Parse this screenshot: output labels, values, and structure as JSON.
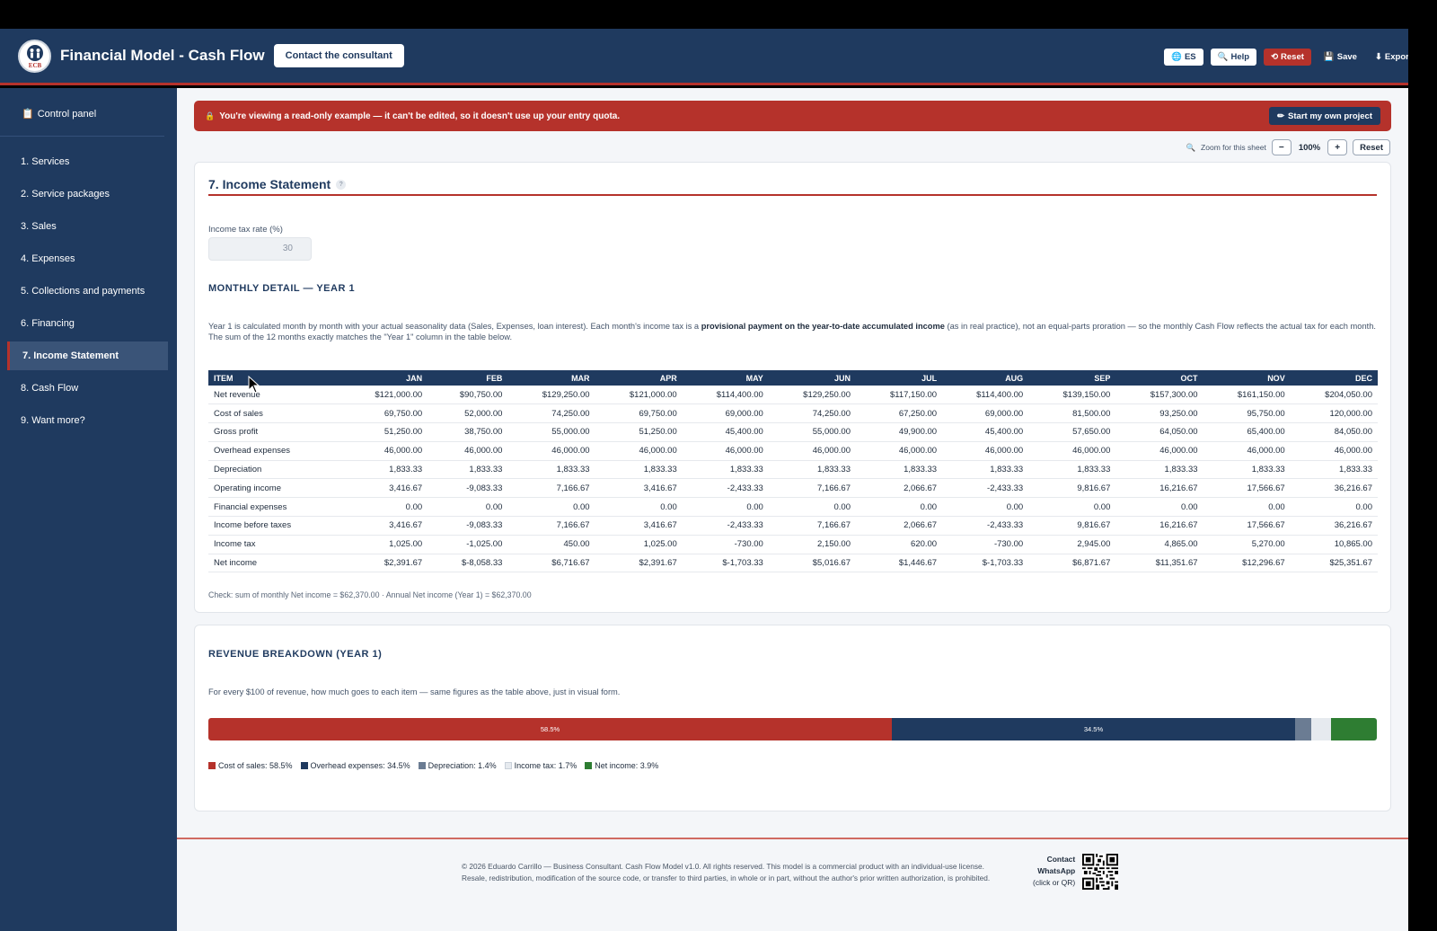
{
  "header": {
    "logo_text": "ECB",
    "title": "Financial Model - Cash Flow",
    "contact_button": "Contact the consultant",
    "buttons": {
      "lang": "ES",
      "help": "Help",
      "reset": "Reset",
      "save": "Save",
      "export": "Export"
    }
  },
  "sidebar": {
    "control_panel": "Control panel",
    "items": [
      {
        "label": "1. Services"
      },
      {
        "label": "2. Service packages"
      },
      {
        "label": "3. Sales"
      },
      {
        "label": "4. Expenses"
      },
      {
        "label": "5. Collections and payments"
      },
      {
        "label": "6. Financing"
      },
      {
        "label": "7. Income Statement"
      },
      {
        "label": "8. Cash Flow"
      },
      {
        "label": "9. Want more?"
      }
    ],
    "active_index": 6
  },
  "banner": {
    "text": "You're viewing a read-only example — it can't be edited, so it doesn't use up your entry quota.",
    "button": "Start my own project"
  },
  "zoom": {
    "label": "Zoom for this sheet",
    "minus": "−",
    "value": "100%",
    "plus": "+",
    "reset": "Reset"
  },
  "income_statement": {
    "title": "7. Income Statement",
    "help": "?",
    "tax_label": "Income tax rate (%)",
    "tax_value": "30",
    "monthly_title": "MONTHLY DETAIL — YEAR 1",
    "desc_1": "Year 1 is calculated month by month with your actual seasonality data (Sales, Expenses, loan interest). Each month's income tax is a ",
    "desc_bold": "provisional payment on the year-to-date accumulated income",
    "desc_2": " (as in real practice), not an equal-parts proration — so the monthly Cash Flow reflects the actual tax for each month. The sum of the 12 months exactly matches the \"Year 1\" column in the table below.",
    "columns": [
      "ITEM",
      "JAN",
      "FEB",
      "MAR",
      "APR",
      "MAY",
      "JUN",
      "JUL",
      "AUG",
      "SEP",
      "OCT",
      "NOV",
      "DEC"
    ],
    "rows": [
      [
        "Net revenue",
        "$121,000.00",
        "$90,750.00",
        "$129,250.00",
        "$121,000.00",
        "$114,400.00",
        "$129,250.00",
        "$117,150.00",
        "$114,400.00",
        "$139,150.00",
        "$157,300.00",
        "$161,150.00",
        "$204,050.00"
      ],
      [
        "Cost of sales",
        "69,750.00",
        "52,000.00",
        "74,250.00",
        "69,750.00",
        "69,000.00",
        "74,250.00",
        "67,250.00",
        "69,000.00",
        "81,500.00",
        "93,250.00",
        "95,750.00",
        "120,000.00"
      ],
      [
        "Gross profit",
        "51,250.00",
        "38,750.00",
        "55,000.00",
        "51,250.00",
        "45,400.00",
        "55,000.00",
        "49,900.00",
        "45,400.00",
        "57,650.00",
        "64,050.00",
        "65,400.00",
        "84,050.00"
      ],
      [
        "Overhead expenses",
        "46,000.00",
        "46,000.00",
        "46,000.00",
        "46,000.00",
        "46,000.00",
        "46,000.00",
        "46,000.00",
        "46,000.00",
        "46,000.00",
        "46,000.00",
        "46,000.00",
        "46,000.00"
      ],
      [
        "Depreciation",
        "1,833.33",
        "1,833.33",
        "1,833.33",
        "1,833.33",
        "1,833.33",
        "1,833.33",
        "1,833.33",
        "1,833.33",
        "1,833.33",
        "1,833.33",
        "1,833.33",
        "1,833.33"
      ],
      [
        "Operating income",
        "3,416.67",
        "-9,083.33",
        "7,166.67",
        "3,416.67",
        "-2,433.33",
        "7,166.67",
        "2,066.67",
        "-2,433.33",
        "9,816.67",
        "16,216.67",
        "17,566.67",
        "36,216.67"
      ],
      [
        "Financial expenses",
        "0.00",
        "0.00",
        "0.00",
        "0.00",
        "0.00",
        "0.00",
        "0.00",
        "0.00",
        "0.00",
        "0.00",
        "0.00",
        "0.00"
      ],
      [
        "Income before taxes",
        "3,416.67",
        "-9,083.33",
        "7,166.67",
        "3,416.67",
        "-2,433.33",
        "7,166.67",
        "2,066.67",
        "-2,433.33",
        "9,816.67",
        "16,216.67",
        "17,566.67",
        "36,216.67"
      ],
      [
        "Income tax",
        "1,025.00",
        "-1,025.00",
        "450.00",
        "1,025.00",
        "-730.00",
        "2,150.00",
        "620.00",
        "-730.00",
        "2,945.00",
        "4,865.00",
        "5,270.00",
        "10,865.00"
      ],
      [
        "Net income",
        "$2,391.67",
        "$-8,058.33",
        "$6,716.67",
        "$2,391.67",
        "$-1,703.33",
        "$5,016.67",
        "$1,446.67",
        "$-1,703.33",
        "$6,871.67",
        "$11,351.67",
        "$12,296.67",
        "$25,351.67"
      ]
    ],
    "check": "Check: sum of monthly Net income = $62,370.00 · Annual Net income (Year 1) = $62,370.00"
  },
  "revenue_breakdown": {
    "title": "REVENUE BREAKDOWN (YEAR 1)",
    "desc": "For every $100 of revenue, how much goes to each item — same figures as the table above, just in visual form.",
    "segments": [
      {
        "name": "Cost of sales",
        "value": 58.5,
        "label": "58.5%",
        "legend": "Cost of sales: 58.5%",
        "color": "#b5322b"
      },
      {
        "name": "Overhead expenses",
        "value": 34.5,
        "label": "34.5%",
        "legend": "Overhead expenses: 34.5%",
        "color": "#1f3a5f"
      },
      {
        "name": "Depreciation",
        "value": 1.4,
        "label": "",
        "legend": "Depreciation: 1.4%",
        "color": "#6b7c93"
      },
      {
        "name": "Income tax",
        "value": 1.7,
        "label": "",
        "legend": "Income tax: 1.7%",
        "color": "#e6eaef"
      },
      {
        "name": "Net income",
        "value": 3.9,
        "label": "",
        "legend": "Net income: 3.9%",
        "color": "#2e7d32"
      }
    ]
  },
  "footer": {
    "line1": "© 2026 Eduardo Carrillo — Business Consultant. Cash Flow Model v1.0. All rights reserved. This model is a commercial product with an individual-use license.",
    "line2": "Resale, redistribution, modification of the source code, or transfer to third parties, in whole or in part, without the author's prior written authorization, is prohibited.",
    "contact_1": "Contact",
    "contact_2": "WhatsApp",
    "contact_3": "(click or QR)"
  },
  "colors": {
    "brand": "#1f3a5f",
    "accent": "#b5322b"
  }
}
